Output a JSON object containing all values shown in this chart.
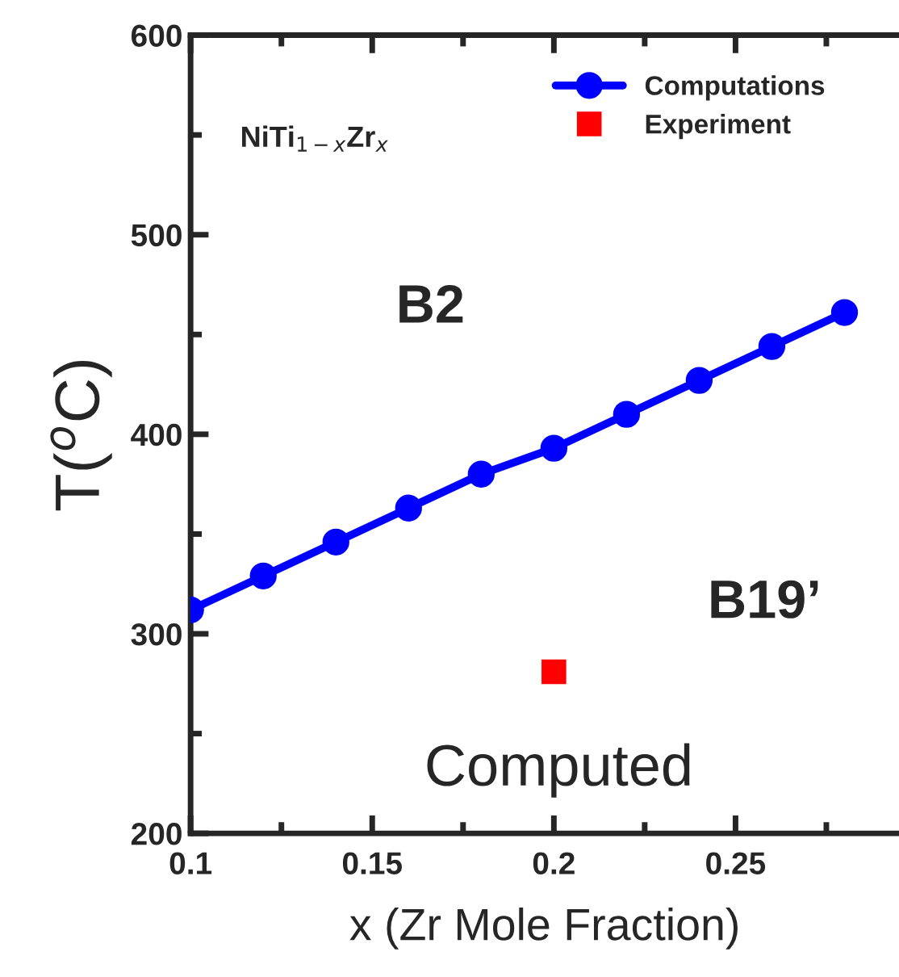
{
  "chart_data": {
    "type": "line",
    "xlabel": "x (Zr Mole Fraction)",
    "ylabel": "T($^{o}$C)",
    "xlim": [
      0.1,
      0.295
    ],
    "xticks": [
      0.1,
      {
        "value": 0.125,
        "label": null
      },
      0.15,
      {
        "value": 0.175,
        "label": null
      },
      0.2,
      {
        "value": 0.225,
        "label": null
      },
      0.25,
      {
        "value": 0.275,
        "label": null
      }
    ],
    "ylim": [
      200,
      600
    ],
    "yticks": [
      200,
      {
        "value": 250,
        "label": null
      },
      300,
      {
        "value": 350,
        "label": null
      },
      400,
      {
        "value": 450,
        "label": null
      },
      500,
      {
        "value": 550,
        "label": null
      },
      600
    ],
    "series": [
      {
        "name": "Computations",
        "color": "#0000ff",
        "marker": "circle",
        "x": [
          0.1,
          0.12,
          0.14,
          0.16,
          0.18,
          0.2,
          0.22,
          0.24,
          0.26,
          0.28
        ],
        "values": [
          312,
          329,
          346,
          363,
          380,
          393,
          410,
          427,
          444,
          461
        ]
      },
      {
        "name": "Experiment",
        "color": "#ff0000",
        "type": "scatter",
        "marker": "square",
        "x": [
          0.2
        ],
        "values": [
          281
        ]
      }
    ],
    "legend": "top right",
    "grid": false,
    "annotations": [
      "NiTi$_{1−x}$Zr$_{x}$",
      "B2",
      "B19’",
      "Computed"
    ]
  }
}
